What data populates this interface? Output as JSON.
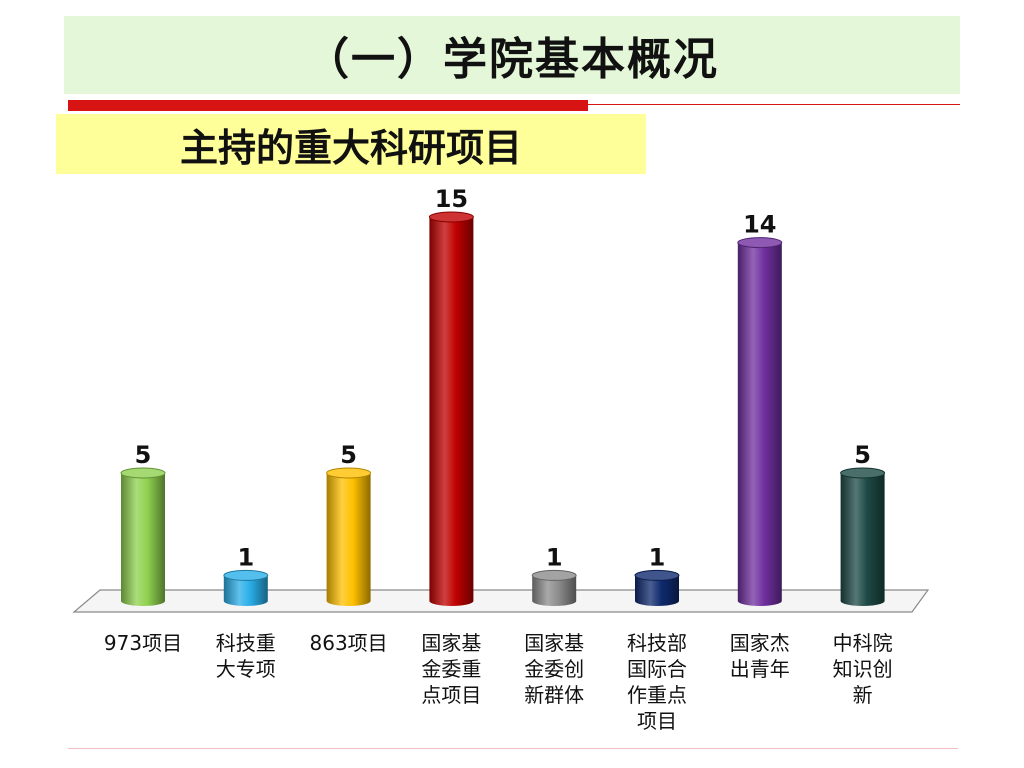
{
  "header": {
    "title": "（一）学院基本概况",
    "subtitle": "主持的重大科研项目"
  },
  "chart_data": {
    "type": "bar",
    "categories": [
      "973项目",
      "科技重大专项",
      "863项目",
      "国家基金委重点项目",
      "国家基金委创新群体",
      "科技部国际合作重点项目",
      "国家杰出青年",
      "中科院知识创新"
    ],
    "category_lines": [
      [
        "973项目"
      ],
      [
        "科技重",
        "大专项"
      ],
      [
        "863项目"
      ],
      [
        "国家基",
        "金委重",
        "点项目"
      ],
      [
        "国家基",
        "金委创",
        "新群体"
      ],
      [
        "科技部",
        "国际合",
        "作重点",
        "项目"
      ],
      [
        "国家杰",
        "出青年"
      ],
      [
        "中科院",
        "知识创",
        "新"
      ]
    ],
    "values": [
      5,
      1,
      5,
      15,
      1,
      1,
      14,
      5
    ],
    "bar_colors": [
      "#8fd14f",
      "#29aee8",
      "#ffc000",
      "#c00000",
      "#8c8c8c",
      "#0f2a6e",
      "#7030a0",
      "#1d4a45"
    ],
    "ylim": [
      0,
      15
    ],
    "grid": false,
    "legend": "none"
  }
}
